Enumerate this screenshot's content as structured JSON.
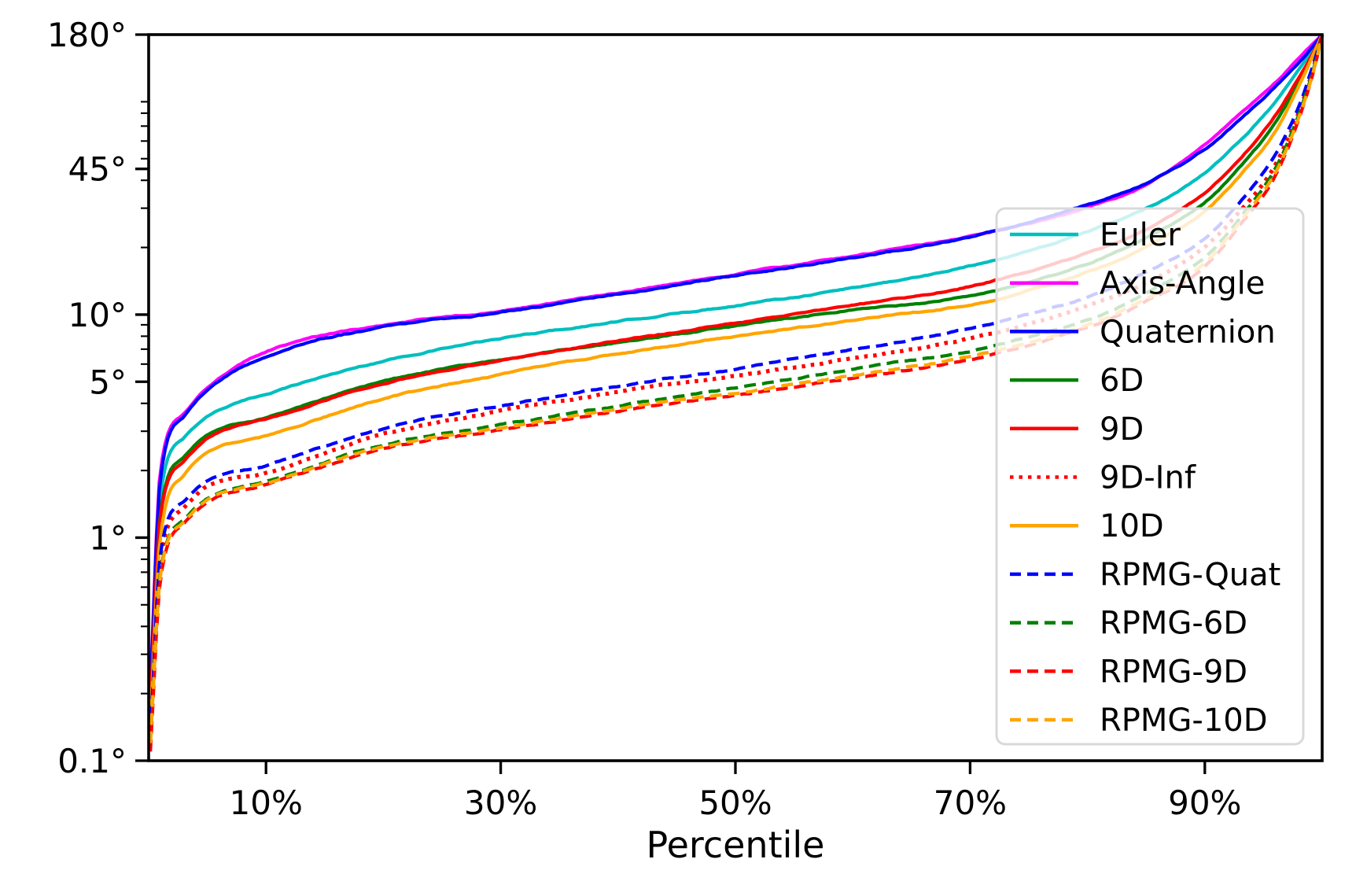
{
  "figure": {
    "background": "#ffffff"
  },
  "chart_data": {
    "type": "line",
    "title": "",
    "xlabel": "Percentile",
    "ylabel": "",
    "yscale": "log",
    "xlim": [
      0,
      100
    ],
    "ylim": [
      0.1,
      180
    ],
    "grid": false,
    "axis_color": "#000000",
    "legend_position": "center right",
    "legend_frame_alpha": 0.8,
    "legend_border_color": "#d9d9d9",
    "xticks": [
      {
        "label": "10%",
        "value": 10
      },
      {
        "label": "30%",
        "value": 30
      },
      {
        "label": "50%",
        "value": 50
      },
      {
        "label": "70%",
        "value": 70
      },
      {
        "label": "90%",
        "value": 90
      }
    ],
    "yticks": [
      {
        "label": "180°",
        "value": 180
      },
      {
        "label": "45°",
        "value": 45
      },
      {
        "label": "10°",
        "value": 10
      },
      {
        "label": "5°",
        "value": 5
      },
      {
        "label": "1°",
        "value": 1
      },
      {
        "label": "0.1°",
        "value": 0.1
      }
    ],
    "y_minor_ticks": [
      0.2,
      0.3,
      0.4,
      0.5,
      0.6,
      0.7,
      0.8,
      0.9,
      2,
      3,
      4,
      6,
      7,
      8,
      9,
      20,
      30,
      40,
      50,
      60,
      70,
      80,
      90
    ],
    "percentiles": [
      0.15,
      1,
      3,
      5,
      10,
      20,
      30,
      40,
      50,
      60,
      70,
      80,
      85,
      90,
      93,
      96,
      98,
      99.3,
      100
    ],
    "series": [
      {
        "name": "Euler",
        "color": "#00BFBF",
        "style": "solid",
        "degrees": [
          0.2,
          1.55,
          2.8,
          3.5,
          4.4,
          6.2,
          7.8,
          9.3,
          11.0,
          13.2,
          16.5,
          23.5,
          30,
          43,
          60,
          90,
          125,
          158,
          180
        ]
      },
      {
        "name": "Axis-Angle",
        "color": "#FF00FF",
        "style": "solid",
        "degrees": [
          0.22,
          2.0,
          3.6,
          4.7,
          6.8,
          9.0,
          10.4,
          12.5,
          15.2,
          18.3,
          22.5,
          30.0,
          38,
          58,
          80,
          110,
          140,
          165,
          180
        ]
      },
      {
        "name": "Quaternion",
        "color": "#0000FF",
        "style": "solid",
        "degrees": [
          0.21,
          1.85,
          3.5,
          4.6,
          6.5,
          8.8,
          10.2,
          12.3,
          15.0,
          18.0,
          22.3,
          31.0,
          39,
          55,
          75,
          105,
          135,
          162,
          180
        ]
      },
      {
        "name": "6D",
        "color": "#008000",
        "style": "solid",
        "degrees": [
          0.17,
          1.3,
          2.3,
          2.9,
          3.45,
          5.0,
          6.3,
          7.5,
          8.9,
          10.5,
          12.1,
          17.0,
          22,
          32,
          46,
          72,
          110,
          150,
          180
        ]
      },
      {
        "name": "9D",
        "color": "#FF0000",
        "style": "solid",
        "degrees": [
          0.18,
          1.25,
          2.2,
          2.8,
          3.4,
          4.9,
          6.2,
          7.6,
          9.2,
          11.0,
          13.4,
          19.0,
          24,
          35,
          50,
          78,
          115,
          152,
          180
        ]
      },
      {
        "name": "9D-Inf",
        "color": "#FF0000",
        "style": "dotted",
        "degrees": [
          0.13,
          0.8,
          1.35,
          1.7,
          1.95,
          2.9,
          3.7,
          4.5,
          5.3,
          6.4,
          7.8,
          11.0,
          14,
          20,
          29,
          47,
          80,
          130,
          180
        ]
      },
      {
        "name": "10D",
        "color": "#FFA500",
        "style": "solid",
        "degrees": [
          0.15,
          1.0,
          1.9,
          2.4,
          2.85,
          4.2,
          5.4,
          6.7,
          8.0,
          9.5,
          11.1,
          15.5,
          20,
          29,
          42,
          66,
          105,
          148,
          180
        ]
      },
      {
        "name": "RPMG-Quat",
        "color": "#0000FF",
        "style": "dashed",
        "degrees": [
          0.13,
          0.85,
          1.45,
          1.8,
          2.1,
          3.1,
          3.9,
          4.8,
          5.7,
          7.0,
          8.7,
          12.0,
          15.5,
          22,
          32,
          52,
          85,
          135,
          180
        ]
      },
      {
        "name": "RPMG-6D",
        "color": "#008000",
        "style": "dashed",
        "degrees": [
          0.12,
          0.7,
          1.2,
          1.5,
          1.78,
          2.6,
          3.2,
          3.9,
          4.7,
          5.7,
          6.9,
          9.5,
          12.5,
          18,
          27,
          45,
          78,
          128,
          180
        ]
      },
      {
        "name": "RPMG-9D",
        "color": "#FF0000",
        "style": "dashed",
        "degrees": [
          0.11,
          0.65,
          1.15,
          1.45,
          1.72,
          2.5,
          3.05,
          3.7,
          4.35,
          5.2,
          6.3,
          8.8,
          11.5,
          16.5,
          25,
          42,
          75,
          125,
          180
        ]
      },
      {
        "name": "RPMG-10D",
        "color": "#FFA500",
        "style": "dashed",
        "degrees": [
          0.12,
          0.68,
          1.18,
          1.48,
          1.75,
          2.55,
          3.1,
          3.8,
          4.45,
          5.35,
          6.5,
          9.0,
          11.8,
          17.0,
          26,
          43,
          76,
          126,
          180
        ]
      }
    ]
  }
}
